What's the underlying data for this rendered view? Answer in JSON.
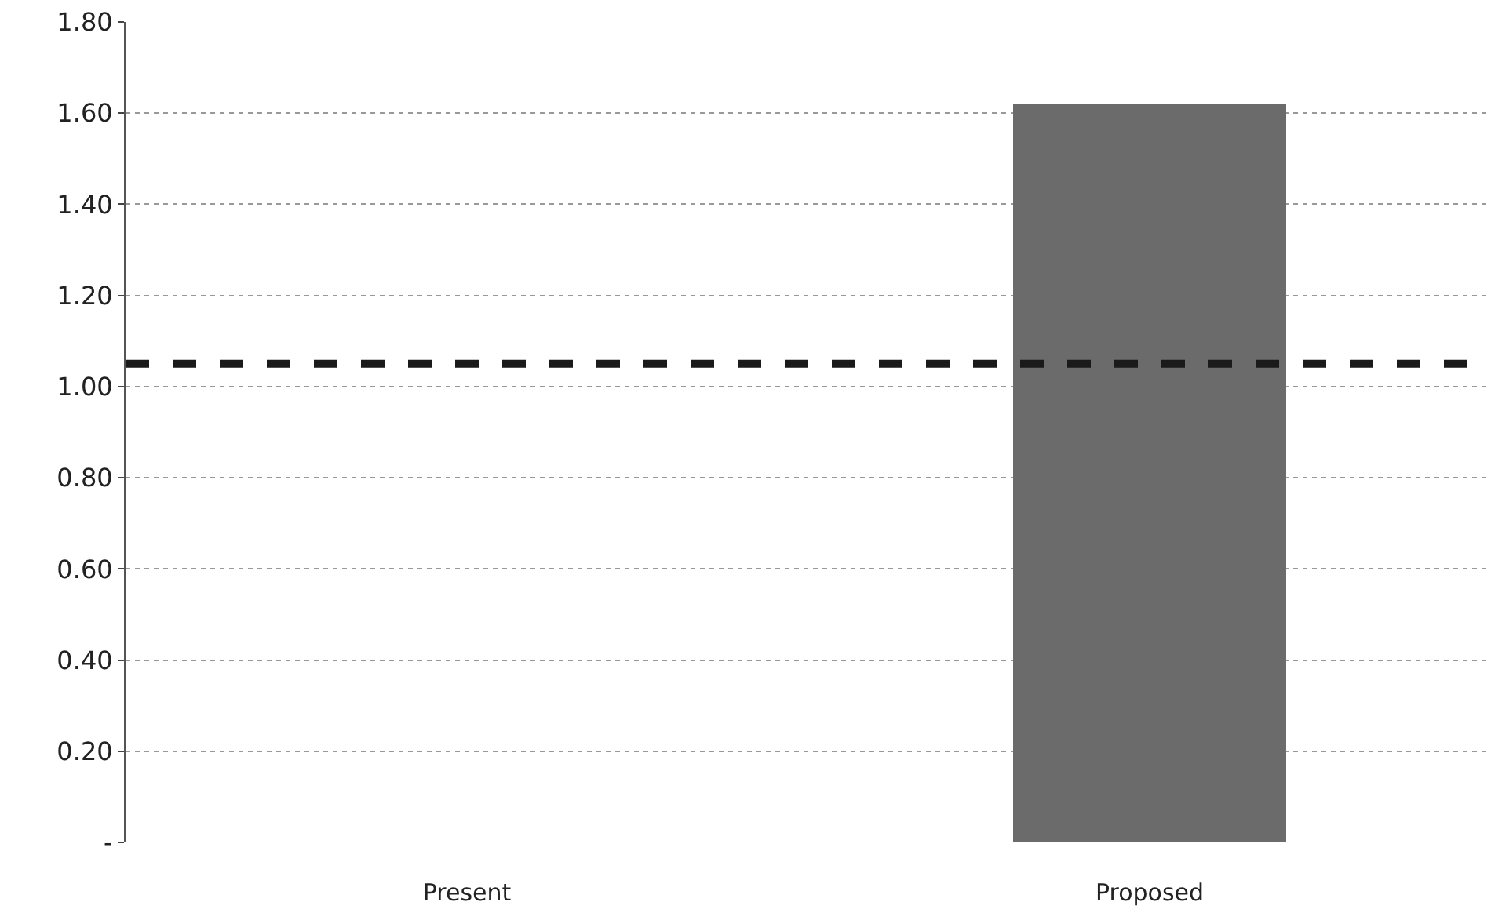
{
  "chart_data": {
    "type": "bar",
    "categories": [
      "Present",
      "Proposed"
    ],
    "values": [
      0,
      1.62
    ],
    "color": "#6b6b6b",
    "ylim": [
      0,
      1.8
    ],
    "yticks": [
      {
        "value": 0,
        "label": "-"
      },
      {
        "value": 0.2,
        "label": "0.20"
      },
      {
        "value": 0.4,
        "label": "0.40"
      },
      {
        "value": 0.6,
        "label": "0.60"
      },
      {
        "value": 0.8,
        "label": "0.80"
      },
      {
        "value": 1.0,
        "label": "1.00"
      },
      {
        "value": 1.2,
        "label": "1.20"
      },
      {
        "value": 1.4,
        "label": "1.40"
      },
      {
        "value": 1.6,
        "label": "1.60"
      },
      {
        "value": 1.8,
        "label": "1.80"
      }
    ],
    "grid": "y",
    "ref_lines": [
      {
        "axis": "y",
        "value": 1.05,
        "color": "#1a1a1a",
        "line_style": "dashed"
      }
    ]
  }
}
